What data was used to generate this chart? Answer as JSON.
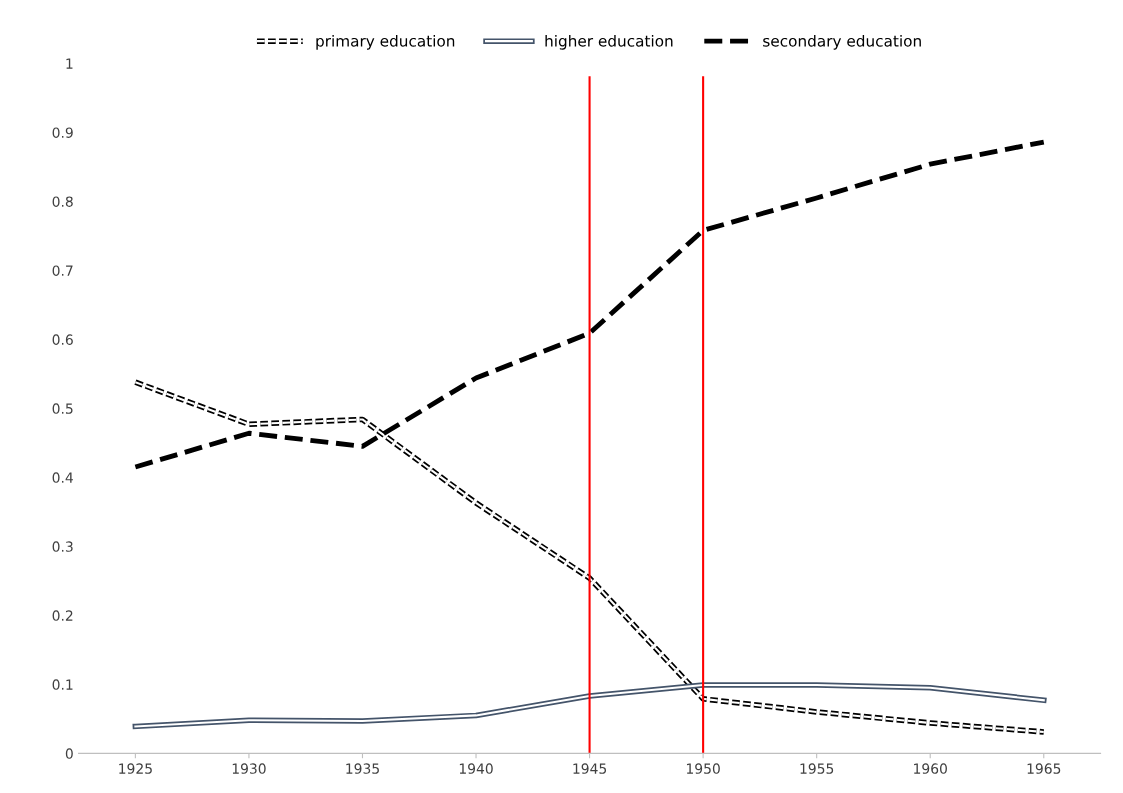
{
  "chart_data": {
    "type": "line",
    "categories": [
      "1925",
      "1930",
      "1935",
      "1940",
      "1945",
      "1950",
      "1955",
      "1960",
      "1965"
    ],
    "series": [
      {
        "name": "primary education",
        "color": "#000000",
        "line_style": "dashed",
        "values": [
          0.538,
          0.477,
          0.484,
          0.363,
          0.254,
          0.079,
          0.06,
          0.044,
          0.031
        ]
      },
      {
        "name": "higher education",
        "color": "#44546a",
        "line_style": "solid",
        "values": [
          0.039,
          0.048,
          0.047,
          0.055,
          0.083,
          0.099,
          0.099,
          0.095,
          0.077
        ]
      },
      {
        "name": "secondary education",
        "color": "#000000",
        "line_style": "dashed",
        "values": [
          0.415,
          0.464,
          0.445,
          0.544,
          0.609,
          0.758,
          0.805,
          0.854,
          0.886
        ]
      }
    ],
    "ylim": [
      0,
      1
    ],
    "yticks": [
      0,
      0.1,
      0.2,
      0.3,
      0.4,
      0.5,
      0.6,
      0.7,
      0.8,
      0.9,
      1
    ],
    "ref_lines": [
      {
        "axis": "x",
        "value": "1945",
        "color": "#ff0000"
      },
      {
        "axis": "x",
        "value": "1950",
        "color": "#ff0000"
      }
    ],
    "grid": false,
    "legend": "top",
    "marker": "none"
  }
}
